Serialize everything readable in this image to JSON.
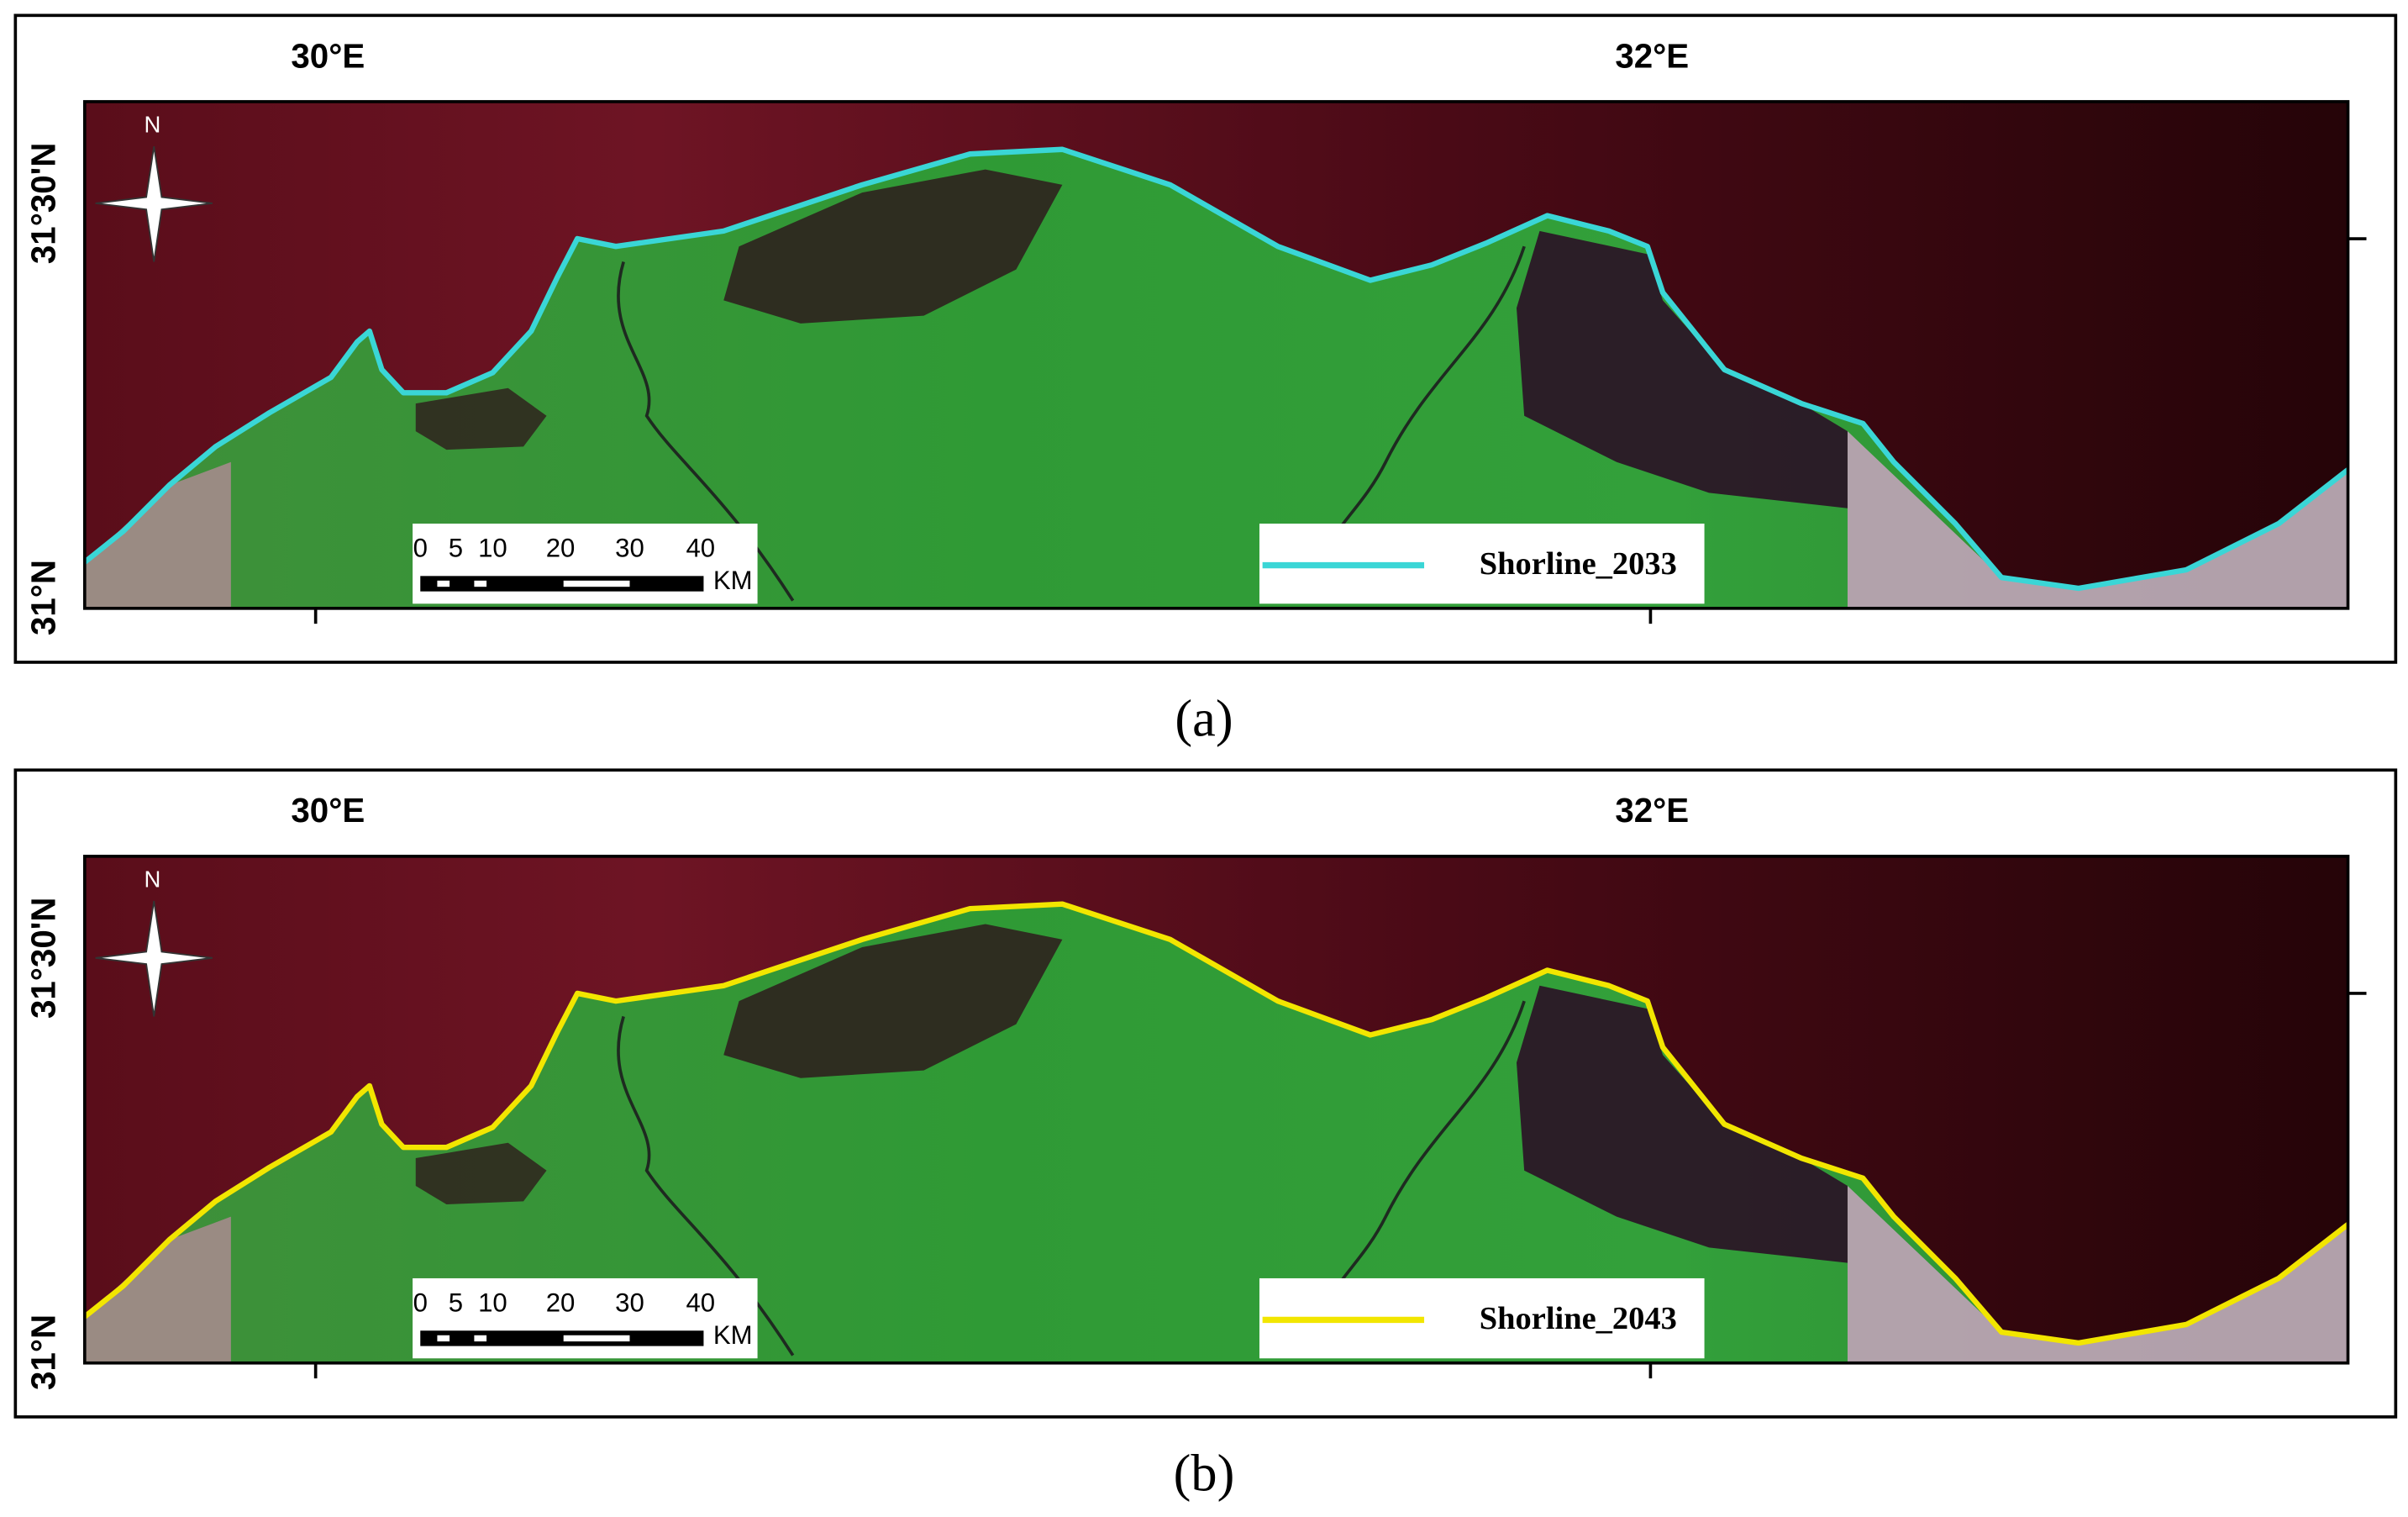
{
  "panels": [
    {
      "caption": "(a)",
      "lon_labels": [
        "30°E",
        "32°E"
      ],
      "lat_labels": [
        "31°30'N",
        "31°N"
      ],
      "north": "N",
      "scale_labels": [
        "0",
        "5",
        "10",
        "20",
        "30",
        "40"
      ],
      "scale_unit": "KM",
      "legend": {
        "label": "Shorline_2033",
        "color": "#3ad6d6"
      }
    },
    {
      "caption": "(b)",
      "lon_labels": [
        "30°E",
        "32°E"
      ],
      "lat_labels": [
        "31°30'N",
        "31°N"
      ],
      "north": "N",
      "scale_labels": [
        "0",
        "5",
        "10",
        "20",
        "30",
        "40"
      ],
      "scale_unit": "KM",
      "legend": {
        "label": "Shorline_2043",
        "color": "#f2e600"
      }
    }
  ]
}
